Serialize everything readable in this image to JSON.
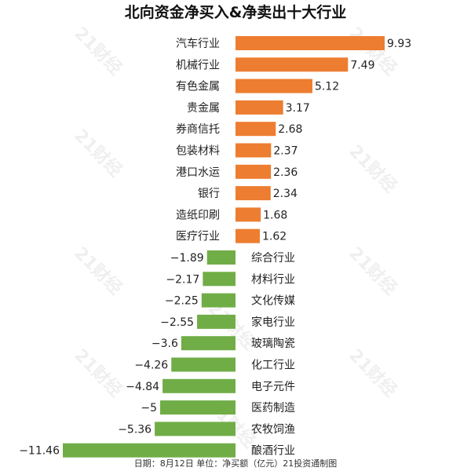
{
  "chart_data": {
    "type": "bar",
    "orientation": "horizontal",
    "title": "北向资金净买入&净卖出十大行业",
    "categories": [
      "汽车行业",
      "机械行业",
      "有色金属",
      "贵金属",
      "券商信托",
      "包装材料",
      "港口水运",
      "银行",
      "造纸印刷",
      "医疗行业",
      "综合行业",
      "材料行业",
      "文化传媒",
      "家电行业",
      "玻璃陶瓷",
      "化工行业",
      "电子元件",
      "医药制造",
      "农牧饲渔",
      "酿酒行业"
    ],
    "values": [
      9.93,
      7.49,
      5.12,
      3.17,
      2.68,
      2.37,
      2.36,
      2.34,
      1.68,
      1.62,
      -1.89,
      -2.17,
      -2.25,
      -2.55,
      -3.6,
      -4.26,
      -4.84,
      -5,
      -5.36,
      -11.46
    ],
    "value_labels": [
      "9.93",
      "7.49",
      "5.12",
      "3.17",
      "2.68",
      "2.37",
      "2.36",
      "2.34",
      "1.68",
      "1.62",
      "−1.89",
      "−2.17",
      "−2.25",
      "−2.55",
      "−3.6",
      "−4.26",
      "−4.84",
      "−5",
      "−5.36",
      "−11.46"
    ],
    "xlim": [
      -11.46,
      9.93
    ],
    "grid": false,
    "legend": "none",
    "colors": {
      "positive": "#ED7D31",
      "negative": "#70AD47"
    }
  },
  "watermark": "21财经",
  "footer": "日期：8月12日 单位：净买额（亿元）21投资通制图"
}
